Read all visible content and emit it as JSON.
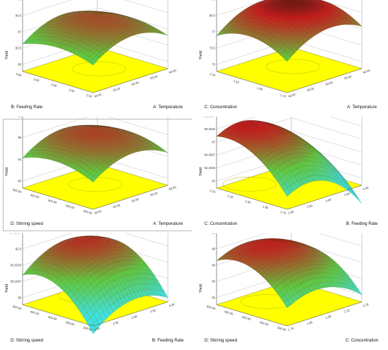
{
  "colors": {
    "floor": "#ffff00",
    "low": "#40e0e0",
    "mid": "#60c840",
    "high": "#c81818",
    "top": "#1a0d00"
  },
  "chart_data": [
    {
      "type": "surface3d",
      "xlabel": "A: Temperature",
      "ylabel": "B: Feeding Rate",
      "zlabel": "Yield",
      "xticks": [
        "40.00",
        "45.00",
        "50.00",
        "55.00",
        "60.00"
      ],
      "yticks": [
        "2.00",
        "2.50",
        "3.00",
        "3.50",
        "4.00"
      ],
      "zticks": [
        "80",
        "83.5",
        "87",
        "90.5",
        "94"
      ],
      "zlim": [
        80,
        94
      ],
      "peak": [
        0.55,
        0.5
      ],
      "zcenter": 89.5,
      "zx": 6,
      "zy": 3,
      "zxy": 0
    },
    {
      "type": "surface3d",
      "xlabel": "A: Temperature",
      "ylabel": "C: Concentration",
      "zlabel": "Yield",
      "xticks": [
        "40.00",
        "45.00",
        "50.00",
        "55.00",
        "60.00"
      ],
      "yticks": [
        "1.75",
        "1.95",
        "2.15",
        "2.25"
      ],
      "zticks": [
        "70",
        "73.5",
        "77",
        "80.5",
        "84"
      ],
      "zlim": [
        70,
        84
      ],
      "peak": [
        0.6,
        0.55
      ],
      "zcenter": 82.5,
      "zx": 6,
      "zy": 5,
      "zxy": 0
    },
    {
      "type": "surface3d",
      "xlabel": "A: Temperature",
      "ylabel": "D: Stirring speed",
      "zlabel": "Yield",
      "xticks": [
        "40.00",
        "45.00",
        "50.00",
        "55.00",
        "60.00"
      ],
      "yticks": [
        "300.00",
        "350.00",
        "400.00",
        "450.00",
        "500.00"
      ],
      "zticks": [
        "80",
        "84",
        "88",
        "92"
      ],
      "zlim": [
        80,
        92
      ],
      "peak": [
        0.55,
        0.55
      ],
      "zcenter": 88.5,
      "zx": 5,
      "zy": 3,
      "zxy": 0
    },
    {
      "type": "surface3d",
      "xlabel": "B: Feeding Rate",
      "ylabel": "C: Concentration",
      "zlabel": "Yield",
      "xticks": [
        "2.00",
        "2.50",
        "3.00",
        "3.50",
        "4.00"
      ],
      "yticks": [
        "1.75",
        "1.85",
        "1.95",
        "2.15",
        "2.25"
      ],
      "zticks": [
        "80",
        "82.3333",
        "84.6667",
        "87",
        "89.3333",
        "91.6667"
      ],
      "zlim": [
        80,
        91.6667
      ],
      "peak": [
        0.3,
        0.85
      ],
      "zcenter": 89.5,
      "zx": 7,
      "zy": 5,
      "zxy": 0
    },
    {
      "type": "surface3d",
      "xlabel": "B: Feeding Rate",
      "ylabel": "D: Stirring speed",
      "zlabel": "Yield",
      "xticks": [
        "2.00",
        "2.50",
        "3.00",
        "3.50",
        "4.00"
      ],
      "yticks": [
        "300.00",
        "350.00",
        "400.00",
        "450.00",
        "500.00"
      ],
      "zticks": [
        "86",
        "88.1667",
        "90.3333",
        "92.5",
        "94.6667"
      ],
      "zlim": [
        86,
        94.6667
      ],
      "peak": [
        0.6,
        0.75
      ],
      "zcenter": 92.5,
      "zx": 4,
      "zy": 5,
      "zxy": 0
    },
    {
      "type": "surface3d",
      "xlabel": "C: Concentration",
      "ylabel": "D: Stirring speed",
      "zlabel": "Yield",
      "xticks": [
        "1.75",
        "1.95",
        "2.05",
        "2.15",
        "2.25"
      ],
      "yticks": [
        "300.00",
        "350.00",
        "400.00",
        "450.00",
        "500.00"
      ],
      "zticks": [
        "80",
        "83",
        "86",
        "89",
        "92"
      ],
      "zlim": [
        80,
        92
      ],
      "peak": [
        0.4,
        0.7
      ],
      "zcenter": 89.5,
      "zx": 5,
      "zy": 6,
      "zxy": 0
    }
  ]
}
